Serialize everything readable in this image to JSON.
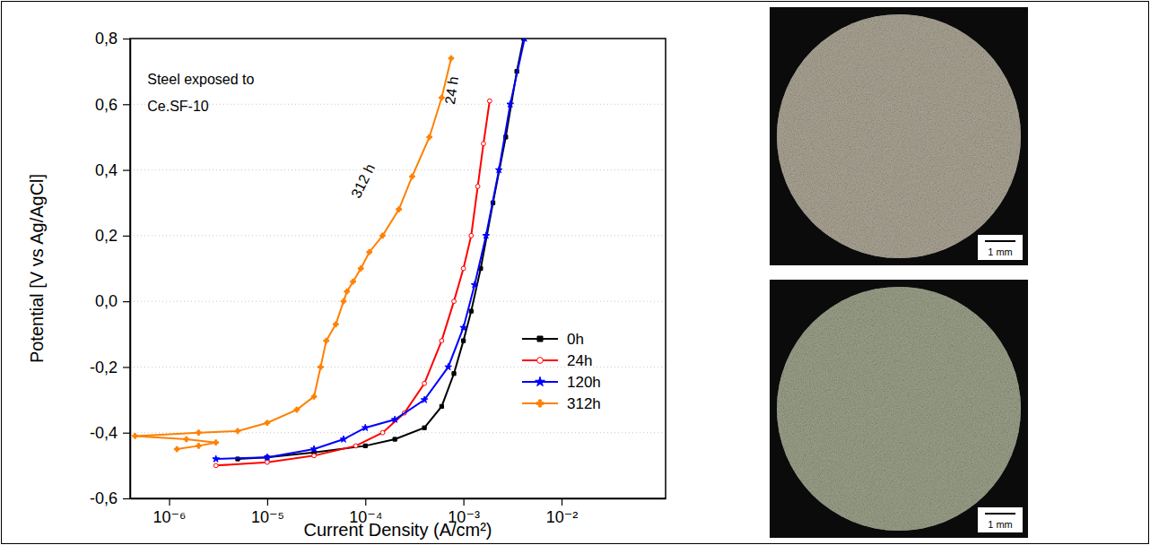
{
  "chart_data": {
    "type": "line",
    "xlabel": "Current Density (A/cm²)",
    "ylabel": "Potential [V vs Ag/AgCl]",
    "log": "x",
    "grid": true,
    "legend": "lower right",
    "xlim": [
      4e-07,
      0.115
    ],
    "ylim": [
      -0.6,
      0.8
    ],
    "xticks": [
      {
        "value": 1e-06,
        "label": "10⁻⁶"
      },
      {
        "value": 1e-05,
        "label": "10⁻⁵"
      },
      {
        "value": 0.0001,
        "label": "10⁻⁴"
      },
      {
        "value": 0.001,
        "label": "10⁻³"
      },
      {
        "value": 0.01,
        "label": "10⁻²"
      }
    ],
    "yticks": [
      {
        "value": -0.6,
        "label": "-0,6"
      },
      {
        "value": -0.4,
        "label": "-0,4"
      },
      {
        "value": -0.2,
        "label": "-0,2"
      },
      {
        "value": 0,
        "label": "0,0"
      },
      {
        "value": 0.2,
        "label": "0,2"
      },
      {
        "value": 0.4,
        "label": "0,4"
      },
      {
        "value": 0.6,
        "label": "0,6"
      },
      {
        "value": 0.8,
        "label": "0,8"
      }
    ],
    "annotations": [
      {
        "text": "Steel exposed to",
        "x": 6e-07,
        "y": 0.66
      },
      {
        "text": "Ce.SF-10",
        "x": 6e-07,
        "y": 0.58
      }
    ],
    "series": [
      {
        "name": "0h",
        "color": "#000000",
        "marker": "square",
        "x": [
          5e-06,
          1e-05,
          3e-05,
          0.0001,
          0.0002,
          0.0004,
          0.0006,
          0.0008,
          0.001,
          0.0012,
          0.0015,
          0.002,
          0.0027,
          0.0035,
          0.0041
        ],
        "values": [
          -0.48,
          -0.475,
          -0.46,
          -0.44,
          -0.42,
          -0.385,
          -0.32,
          -0.22,
          -0.12,
          -0.03,
          0.1,
          0.3,
          0.5,
          0.7,
          0.8
        ]
      },
      {
        "name": "24h",
        "color": "#ff0000",
        "marker": "circle",
        "label": {
          "text": "24 h",
          "x": 0.00085,
          "y": 0.64
        },
        "x": [
          3e-06,
          1e-05,
          3e-05,
          8e-05,
          0.00015,
          0.00025,
          0.0004,
          0.0006,
          0.0008,
          0.001,
          0.0012,
          0.0014,
          0.0016,
          0.00185
        ],
        "values": [
          -0.5,
          -0.49,
          -0.47,
          -0.44,
          -0.4,
          -0.34,
          -0.25,
          -0.12,
          0.0,
          0.1,
          0.2,
          0.35,
          0.48,
          0.61
        ]
      },
      {
        "name": "120h",
        "color": "#0000ff",
        "marker": "star",
        "x": [
          3e-06,
          1e-05,
          3e-05,
          6e-05,
          0.0001,
          0.0002,
          0.0004,
          0.0007,
          0.001,
          0.0013,
          0.0017,
          0.0023,
          0.003,
          0.0042
        ],
        "values": [
          -0.48,
          -0.475,
          -0.45,
          -0.42,
          -0.385,
          -0.36,
          -0.3,
          -0.2,
          -0.08,
          0.05,
          0.2,
          0.4,
          0.6,
          0.8
        ]
      },
      {
        "name": "312h",
        "color": "#ff8000",
        "marker": "plus",
        "label": {
          "text": "312 h",
          "x": 0.000105,
          "y": 0.36
        },
        "x": [
          1.2e-06,
          2e-06,
          3e-06,
          1.5e-06,
          4.5e-07,
          2e-06,
          5e-06,
          1e-05,
          2e-05,
          3e-05,
          3.5e-05,
          4e-05,
          5e-05,
          6e-05,
          6.5e-05,
          7.5e-05,
          9e-05,
          0.00011,
          0.00015,
          0.00022,
          0.0003,
          0.00045,
          0.0006,
          0.00075
        ],
        "values": [
          -0.45,
          -0.44,
          -0.43,
          -0.42,
          -0.41,
          -0.4,
          -0.395,
          -0.37,
          -0.33,
          -0.29,
          -0.2,
          -0.12,
          -0.07,
          0.0,
          0.03,
          0.06,
          0.1,
          0.15,
          0.2,
          0.28,
          0.38,
          0.5,
          0.62,
          0.74
        ]
      }
    ]
  },
  "images": [
    {
      "scale_bar": "1 mm"
    },
    {
      "scale_bar": "1 mm"
    }
  ]
}
